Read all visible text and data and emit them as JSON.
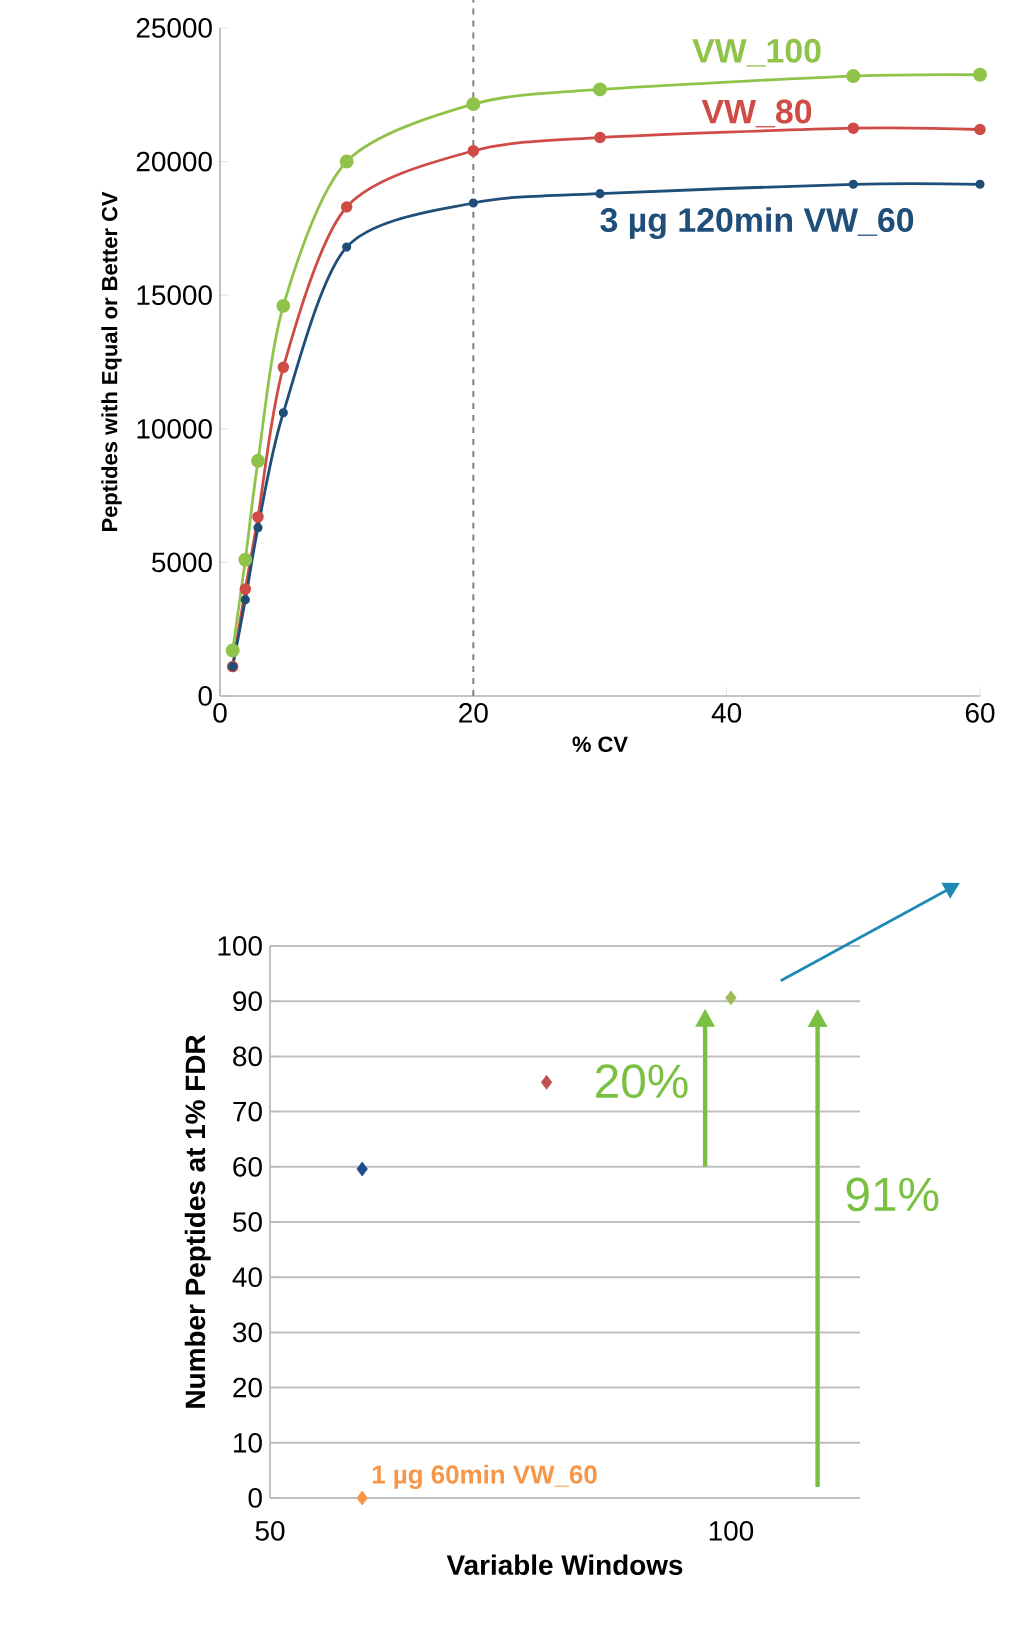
{
  "chart_data": [
    {
      "type": "line",
      "xlabel": "% CV",
      "ylabel": "Peptides with Equal or Better CV",
      "x": [
        1,
        2,
        3,
        5,
        10,
        20,
        30,
        50,
        60
      ],
      "series": [
        {
          "name": "VW_100",
          "color": "#8fc34a",
          "values": [
            1700,
            5100,
            8800,
            14600,
            20000,
            22150,
            22700,
            23200,
            23250
          ]
        },
        {
          "name": "VW_80",
          "color": "#cf4b45",
          "values": [
            1100,
            4000,
            6700,
            12300,
            18300,
            20400,
            20900,
            21250,
            21200
          ]
        },
        {
          "name": "3 µg 120min VW_60",
          "color": "#1f4e79",
          "values": [
            1100,
            3600,
            6300,
            10600,
            16800,
            18450,
            18800,
            19150,
            19150
          ]
        }
      ],
      "xlim": [
        0,
        60
      ],
      "xticks": [
        0,
        20,
        40,
        60
      ],
      "ylim": [
        0,
        25000
      ],
      "yticks": [
        0,
        5000,
        10000,
        15000,
        20000,
        25000
      ],
      "ref_lines": [
        {
          "axis": "x",
          "value": 20,
          "color": "#808080",
          "line_style": "dashed"
        }
      ],
      "grid": false,
      "legend": false,
      "marker": "circle",
      "line_style": "solid"
    },
    {
      "type": "scatter",
      "xlabel": "Variable Windows",
      "ylabel": "Number Peptides at 1% FDR",
      "x": [
        60,
        80,
        100,
        60
      ],
      "values": [
        59.6,
        75.3,
        90.6,
        0
      ],
      "colors": [
        "#1f4e8c",
        "#c0504d",
        "#9bbb59",
        "#f79646"
      ],
      "xlim": [
        50,
        114
      ],
      "xticks": [
        50,
        100
      ],
      "ylim": [
        0,
        100
      ],
      "yticks": [
        0,
        10,
        20,
        30,
        40,
        50,
        60,
        70,
        80,
        90,
        100
      ],
      "annotations": [
        "20%",
        "91%",
        {
          "text": "1 µg 60min VW_60",
          "x": 60,
          "y": 0
        }
      ],
      "grid": "y",
      "legend": false,
      "marker": "diamond"
    }
  ]
}
